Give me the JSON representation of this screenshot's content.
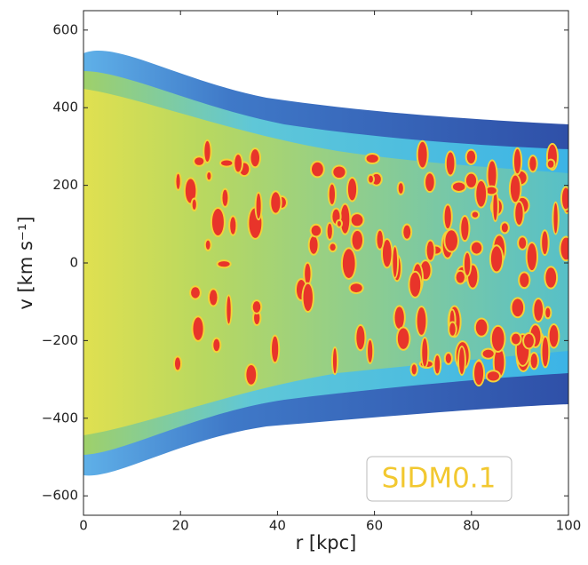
{
  "chart_data": {
    "type": "density",
    "x_label": "r [kpc]",
    "y_label": "v [km s⁻¹]",
    "xlim": [
      0,
      100
    ],
    "xticks": [
      0,
      20,
      40,
      60,
      80,
      100
    ],
    "ylim": [
      -650,
      650
    ],
    "yticks": [
      {
        "value": -600,
        "label": "−600"
      },
      {
        "value": -400,
        "label": "−400"
      },
      {
        "value": -200,
        "label": "−200"
      },
      0,
      200,
      400,
      600
    ],
    "annotation": "SIDM0.1"
  }
}
